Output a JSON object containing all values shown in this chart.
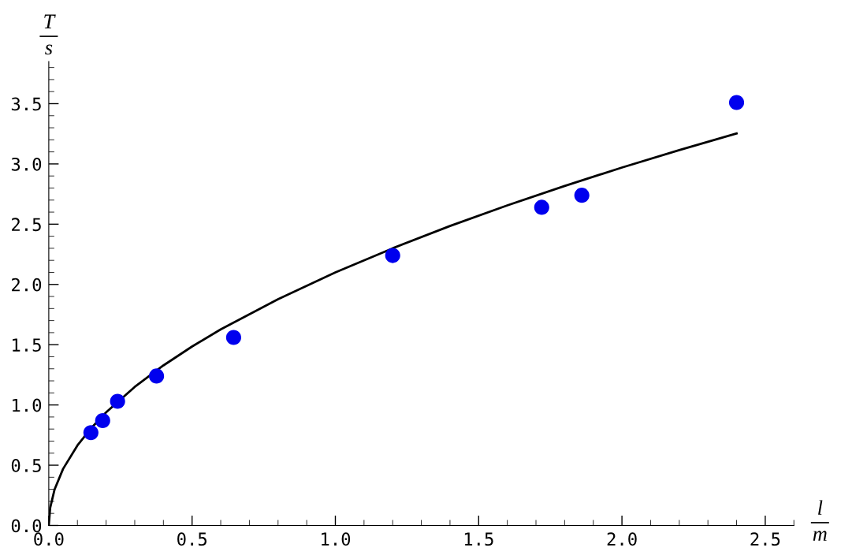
{
  "chart_data": {
    "type": "scatter",
    "xlabel": "l\nm",
    "ylabel": "T\ns",
    "xlim": [
      0,
      2.6
    ],
    "ylim": [
      0,
      3.85
    ],
    "xticks": [
      {
        "value": 0,
        "label": "0.0"
      },
      {
        "value": 0.5,
        "label": "0.5"
      },
      {
        "value": 1,
        "label": "1.0"
      },
      {
        "value": 1.5,
        "label": "1.5"
      },
      {
        "value": 2,
        "label": "2.0"
      },
      {
        "value": 2.5,
        "label": "2.5"
      }
    ],
    "yticks": [
      {
        "value": 0,
        "label": "0.0"
      },
      {
        "value": 0.5,
        "label": "0.5"
      },
      {
        "value": 1,
        "label": "1.0"
      },
      {
        "value": 1.5,
        "label": "1.5"
      },
      {
        "value": 2,
        "label": "2.0"
      },
      {
        "value": 2.5,
        "label": "2.5"
      },
      {
        "value": 3,
        "label": "3.0"
      },
      {
        "value": 3.5,
        "label": "3.5"
      }
    ],
    "grid": false,
    "legend": false,
    "marker": "circle",
    "series": [
      {
        "color": "#0000ee",
        "x": [
          0.147,
          0.188,
          0.24,
          0.376,
          0.645,
          1.2,
          1.72,
          1.86,
          2.4
        ],
        "values": [
          0.77,
          0.87,
          1.03,
          1.24,
          1.56,
          2.24,
          2.64,
          2.74,
          3.51
        ]
      },
      {
        "type": "line",
        "color": "#000000",
        "marker": "none",
        "line_style": "solid",
        "x": [
          0,
          0.005,
          0.02,
          0.05,
          0.1,
          0.15,
          0.2,
          0.3,
          0.4,
          0.5,
          0.6,
          0.8,
          1.0,
          1.2,
          1.4,
          1.6,
          1.8,
          2.0,
          2.2,
          2.4
        ],
        "values": [
          0,
          0.148,
          0.297,
          0.47,
          0.664,
          0.813,
          0.939,
          1.15,
          1.328,
          1.485,
          1.627,
          1.878,
          2.1,
          2.3,
          2.485,
          2.656,
          2.817,
          2.97,
          3.115,
          3.253
        ]
      }
    ]
  }
}
